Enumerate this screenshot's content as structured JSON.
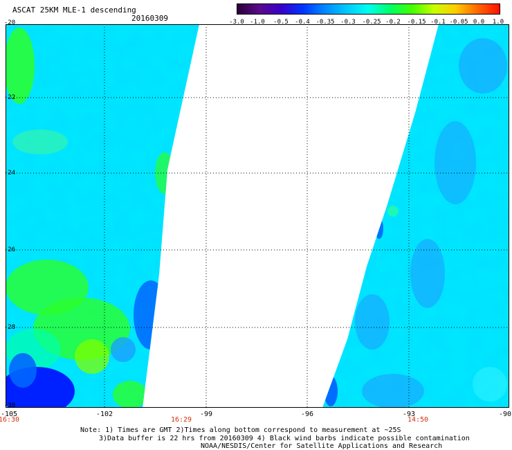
{
  "header": {
    "title": "ASCAT 25KM MLE-1 descending",
    "date": "20160309"
  },
  "colorbar": {
    "ticks": [
      "-3.0",
      "-1.0",
      "-0.5",
      "-0.4",
      "-0.35",
      "-0.3",
      "-0.25",
      "-0.2",
      "-0.15",
      "-0.1",
      "-0.05",
      "0.0",
      "1.0"
    ],
    "colors": [
      "#2a0036",
      "#5a0a8a",
      "#3a00c8",
      "#0033ff",
      "#0088ff",
      "#00c8ff",
      "#00ffee",
      "#00ff66",
      "#44ff00",
      "#c8ff00",
      "#ffcc00",
      "#ff6600",
      "#ff1100"
    ]
  },
  "map": {
    "lon_range": [
      -105,
      -90
    ],
    "lat_range": [
      -30,
      -20
    ],
    "y_ticks": [
      "-20",
      "-22",
      "-24",
      "-26",
      "-28",
      "-30"
    ],
    "x_ticks": [
      "-105",
      "-102",
      "-99",
      "-96",
      "-93",
      "-90"
    ],
    "time_labels": [
      "16:30",
      "16:29",
      "14:50"
    ],
    "time_color": "#d4300c",
    "swath_colors": {
      "cyan": "#00e6ff",
      "light_cyan": "#2ef2ff",
      "green": "#2aff2a",
      "blue": "#0066ff",
      "dark_blue": "#0016ff"
    }
  },
  "notes": {
    "line1": "Note: 1) Times are GMT 2)Times along bottom correspond to measurement at ~25S",
    "line2": "3)Data buffer is 22 hrs from 20160309 4) Black wind barbs indicate possible contamination",
    "line3": "NOAA/NESDIS/Center for Satellite Applications and Research"
  }
}
